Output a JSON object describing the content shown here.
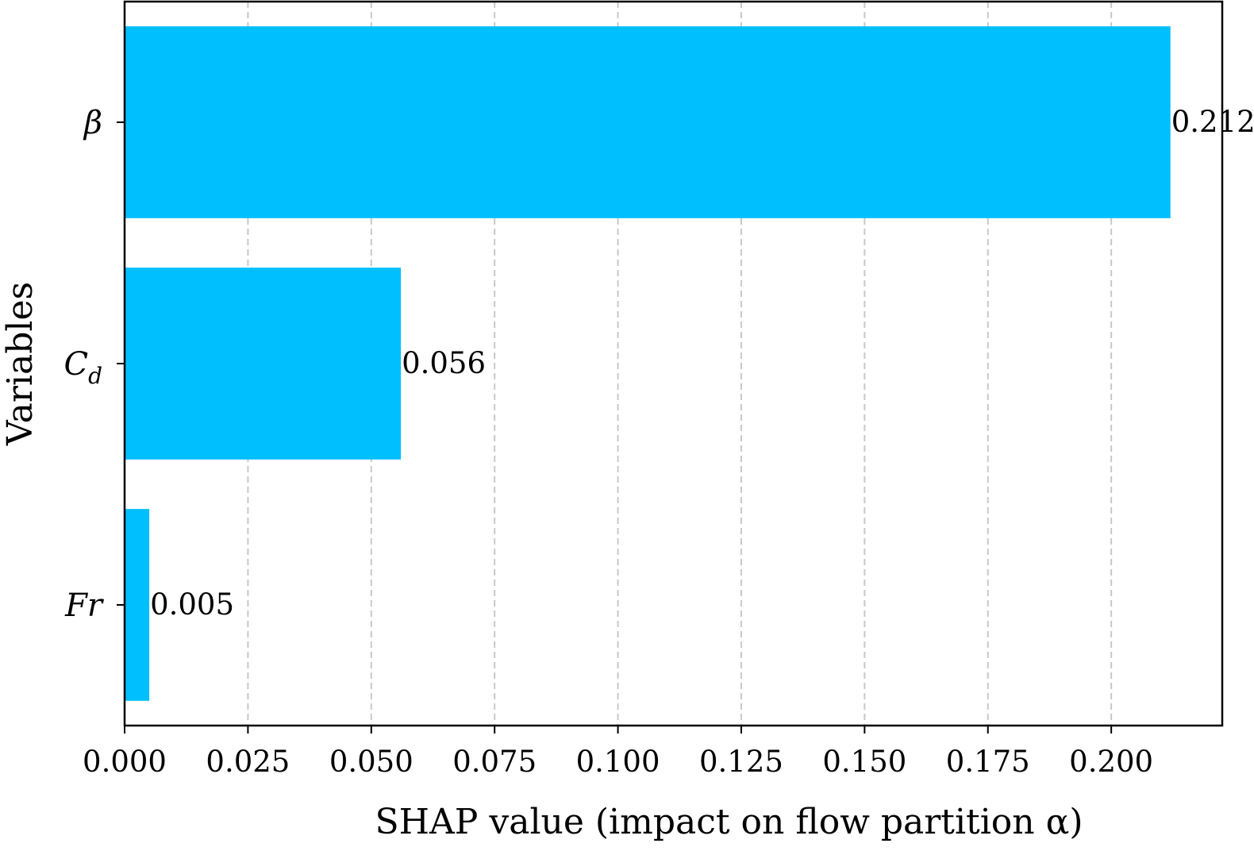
{
  "chart_data": {
    "type": "bar",
    "orientation": "horizontal",
    "categories": [
      "β",
      "C_d",
      "Fr"
    ],
    "category_display": [
      {
        "main": "β",
        "sub": ""
      },
      {
        "main": "C",
        "sub": "d"
      },
      {
        "main": "Fr",
        "sub": ""
      }
    ],
    "values": [
      0.212,
      0.056,
      0.005
    ],
    "value_labels": [
      "0.212",
      "0.056",
      "0.005"
    ],
    "xlabel": "SHAP value (impact on flow partition α)",
    "ylabel": "Variables",
    "xlim": [
      0,
      0.2225
    ],
    "xticks": [
      0.0,
      0.025,
      0.05,
      0.075,
      0.1,
      0.125,
      0.15,
      0.175,
      0.2
    ],
    "xtick_labels": [
      "0.000",
      "0.025",
      "0.050",
      "0.075",
      "0.100",
      "0.125",
      "0.150",
      "0.175",
      "0.200"
    ],
    "grid": "x-dashed",
    "bar_color": "#00bfff",
    "grid_color": "#c8c8c8"
  }
}
